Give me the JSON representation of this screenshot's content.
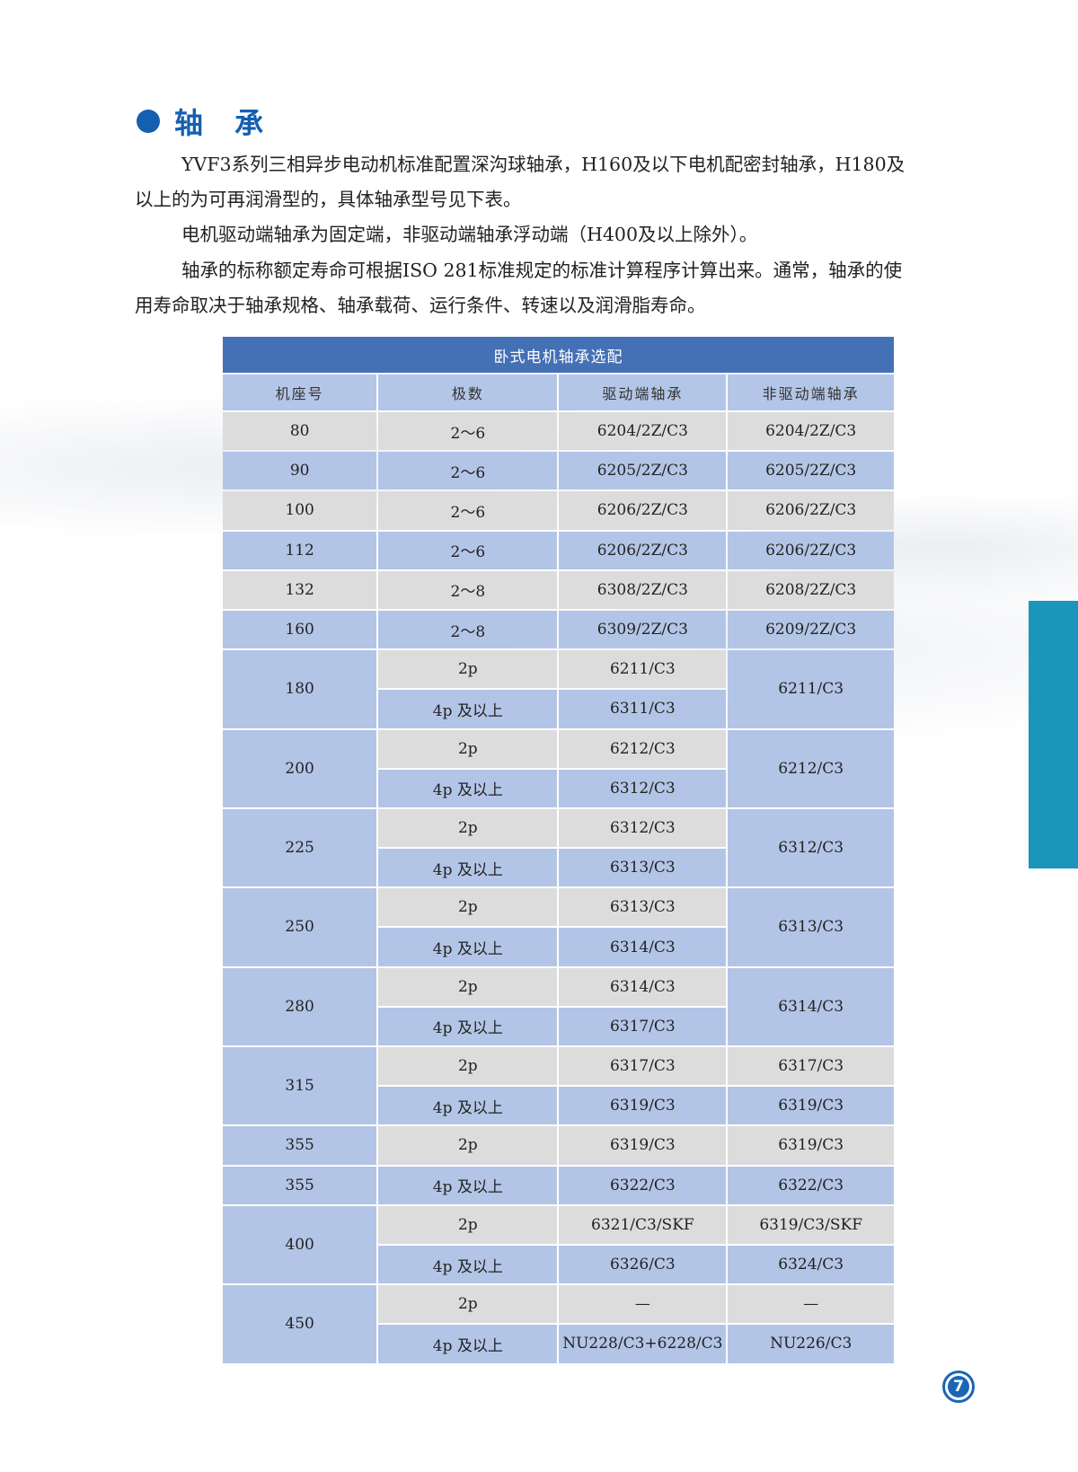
{
  "section": {
    "title": "轴 承",
    "accent_color": "#155fb0",
    "icon": "bullet-dot"
  },
  "paragraphs": [
    [
      "YVF3系列三相异步电动机标准配置深沟球轴承，H160及以下电机配密封轴承，H180及",
      "以上的为可再润滑型的，具体轴承型号见下表。"
    ],
    [
      "电机驱动端轴承为固定端，非驱动端轴承浮动端（H400及以上除外）。"
    ],
    [
      "轴承的标称额定寿命可根据ISO 281标准规定的标准计算程序计算出来。通常，轴承的使",
      "用寿命取决于轴承规格、轴承载荷、运行条件、转速以及润滑脂寿命。"
    ]
  ],
  "table": {
    "caption": "卧式电机轴承选配",
    "headers": [
      "机座号",
      "极数",
      "驱动端轴承",
      "非驱动端轴承"
    ],
    "groups": [
      {
        "frame": "80",
        "rows": [
          {
            "poles": "2～6",
            "de": "6204/2Z/C3",
            "nde": "6204/2Z/C3"
          }
        ]
      },
      {
        "frame": "90",
        "rows": [
          {
            "poles": "2～6",
            "de": "6205/2Z/C3",
            "nde": "6205/2Z/C3"
          }
        ]
      },
      {
        "frame": "100",
        "rows": [
          {
            "poles": "2～6",
            "de": "6206/2Z/C3",
            "nde": "6206/2Z/C3"
          }
        ]
      },
      {
        "frame": "112",
        "rows": [
          {
            "poles": "2～6",
            "de": "6206/2Z/C3",
            "nde": "6206/2Z/C3"
          }
        ]
      },
      {
        "frame": "132",
        "rows": [
          {
            "poles": "2～8",
            "de": "6308/2Z/C3",
            "nde": "6208/2Z/C3"
          }
        ]
      },
      {
        "frame": "160",
        "rows": [
          {
            "poles": "2～8",
            "de": "6309/2Z/C3",
            "nde": "6209/2Z/C3"
          }
        ]
      },
      {
        "frame": "180",
        "nde_merged": "6211/C3",
        "rows": [
          {
            "poles": "2p",
            "de": "6211/C3"
          },
          {
            "poles": "4p 及以上",
            "de": "6311/C3"
          }
        ]
      },
      {
        "frame": "200",
        "nde_merged": "6212/C3",
        "rows": [
          {
            "poles": "2p",
            "de": "6212/C3"
          },
          {
            "poles": "4p 及以上",
            "de": "6312/C3"
          }
        ]
      },
      {
        "frame": "225",
        "nde_merged": "6312/C3",
        "rows": [
          {
            "poles": "2p",
            "de": "6312/C3"
          },
          {
            "poles": "4p 及以上",
            "de": "6313/C3"
          }
        ]
      },
      {
        "frame": "250",
        "nde_merged": "6313/C3",
        "rows": [
          {
            "poles": "2p",
            "de": "6313/C3"
          },
          {
            "poles": "4p 及以上",
            "de": "6314/C3"
          }
        ]
      },
      {
        "frame": "280",
        "nde_merged": "6314/C3",
        "rows": [
          {
            "poles": "2p",
            "de": "6314/C3"
          },
          {
            "poles": "4p 及以上",
            "de": "6317/C3"
          }
        ]
      },
      {
        "frame": "315",
        "rows": [
          {
            "poles": "2p",
            "de": "6317/C3",
            "nde": "6317/C3"
          },
          {
            "poles": "4p 及以上",
            "de": "6319/C3",
            "nde": "6319/C3"
          }
        ]
      },
      {
        "frame": "355",
        "rows": [
          {
            "poles": "2p",
            "de": "6319/C3",
            "nde": "6319/C3"
          }
        ]
      },
      {
        "frame": "355",
        "rows": [
          {
            "poles": "4p 及以上",
            "de": "6322/C3",
            "nde": "6322/C3"
          }
        ]
      },
      {
        "frame": "400",
        "rows": [
          {
            "poles": "2p",
            "de": "6321/C3/SKF",
            "nde": "6319/C3/SKF"
          },
          {
            "poles": "4p 及以上",
            "de": "6326/C3",
            "nde": "6324/C3"
          }
        ]
      },
      {
        "frame": "450",
        "rows": [
          {
            "poles": "2p",
            "de": "—",
            "nde": "—"
          },
          {
            "poles": "4p 及以上",
            "de": "NU228/C3+6228/C3",
            "nde": "NU226/C3"
          }
        ]
      }
    ],
    "colors": {
      "caption": "#4470b6",
      "header": "#b4c6e7",
      "gray_row": "#dcdcdc",
      "blue_row": "#b3c5e6"
    }
  },
  "page_number": "7",
  "side_tab_color": "#1b95b9"
}
